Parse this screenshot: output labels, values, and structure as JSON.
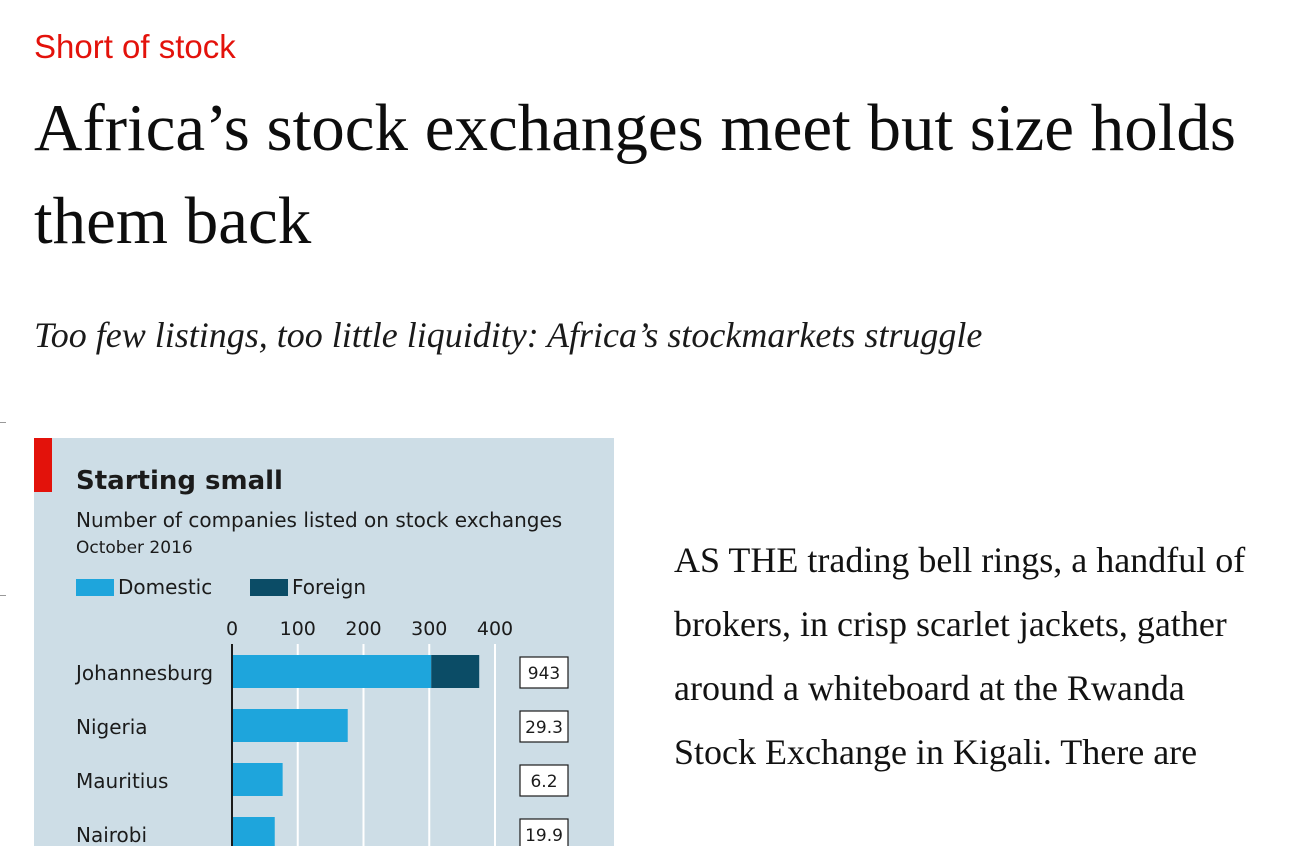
{
  "article": {
    "kicker": "Short of stock",
    "headline": "Africa’s stock exchanges meet but size holds them back",
    "standfirst": "Too few listings, too little liquidity: Africa’s stockmarkets struggle",
    "body": "AS THE trading bell rings, a handful of brokers, in crisp scarlet jackets, gather around a whiteboard at the Rwanda Stock Exchange in Kigali. There are"
  },
  "colors": {
    "accent_red": "#e3120b",
    "chart_background": "#cddde6",
    "domestic": "#1ea5dc",
    "foreign": "#0b4c66"
  },
  "chart_data": {
    "type": "bar",
    "title": "Starting small",
    "subtitle": "Number of companies listed on stock exchanges",
    "date": "October 2016",
    "legend": [
      "Domestic",
      "Foreign"
    ],
    "x_ticks": [
      "0",
      "100",
      "200",
      "300",
      "400"
    ],
    "xlim": [
      0,
      400
    ],
    "categories": [
      "Johannesburg",
      "Nigeria",
      "Mauritius",
      "Nairobi"
    ],
    "series": [
      {
        "name": "Domestic",
        "values": [
          303,
          176,
          77,
          65
        ]
      },
      {
        "name": "Foreign",
        "values": [
          73,
          0,
          0,
          0
        ]
      }
    ],
    "box_values": [
      "943",
      "29.3",
      "6.2",
      "19.9"
    ],
    "grid": true
  }
}
